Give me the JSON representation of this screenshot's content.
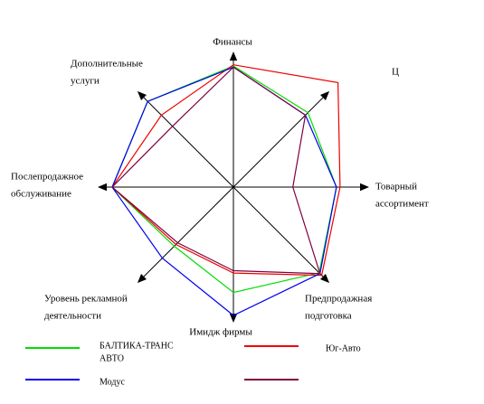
{
  "chart_data": {
    "type": "radar",
    "axes": [
      {
        "name": "Финансы",
        "label_lines": [
          "Финансы"
        ]
      },
      {
        "name": "Ц",
        "label_lines": [
          "Ц"
        ]
      },
      {
        "name": "Товарный ассортимент",
        "label_lines": [
          "Товарный",
          "ассортимент"
        ]
      },
      {
        "name": "Предпродажная подготовка",
        "label_lines": [
          "Предпродажная",
          "подготовка"
        ]
      },
      {
        "name": "Имидж фирмы",
        "label_lines": [
          "Имидж фирмы"
        ]
      },
      {
        "name": "Уровень рекламной деятельности",
        "label_lines": [
          "Уровень рекламной",
          "деятельности"
        ]
      },
      {
        "name": "Послепродажное обслуживание",
        "label_lines": [
          "Послепродажное",
          "обслуживание"
        ]
      },
      {
        "name": "Дополнительные услуги",
        "label_lines": [
          "Дополнительные",
          "услуги"
        ]
      }
    ],
    "max": 10,
    "series": [
      {
        "name": "БАЛТИКА-ТРАНС АВТО",
        "label_lines": [
          "БАЛТИКА-ТРАНС",
          "АВТО"
        ],
        "color": "#00dd00",
        "values": [
          10,
          8.7,
          8.5,
          10,
          8.7,
          6.9,
          10,
          10
        ]
      },
      {
        "name": "Юг-Авто",
        "label_lines": [
          "Юг-Авто"
        ],
        "color": "#ee0000",
        "values": [
          10.1,
          12.2,
          8.8,
          10.3,
          7.1,
          6.7,
          10,
          8.4
        ]
      },
      {
        "name": "Модус",
        "label_lines": [
          "Модус"
        ],
        "color": "#0000ee",
        "values": [
          9.9,
          8.4,
          8.5,
          10.1,
          10.6,
          8.3,
          10,
          10
        ]
      },
      {
        "name": "",
        "label_lines": [],
        "color": "#800040",
        "values": [
          9.9,
          8.4,
          4.9,
          10.1,
          6.9,
          6.5,
          10,
          7.1
        ]
      }
    ]
  }
}
